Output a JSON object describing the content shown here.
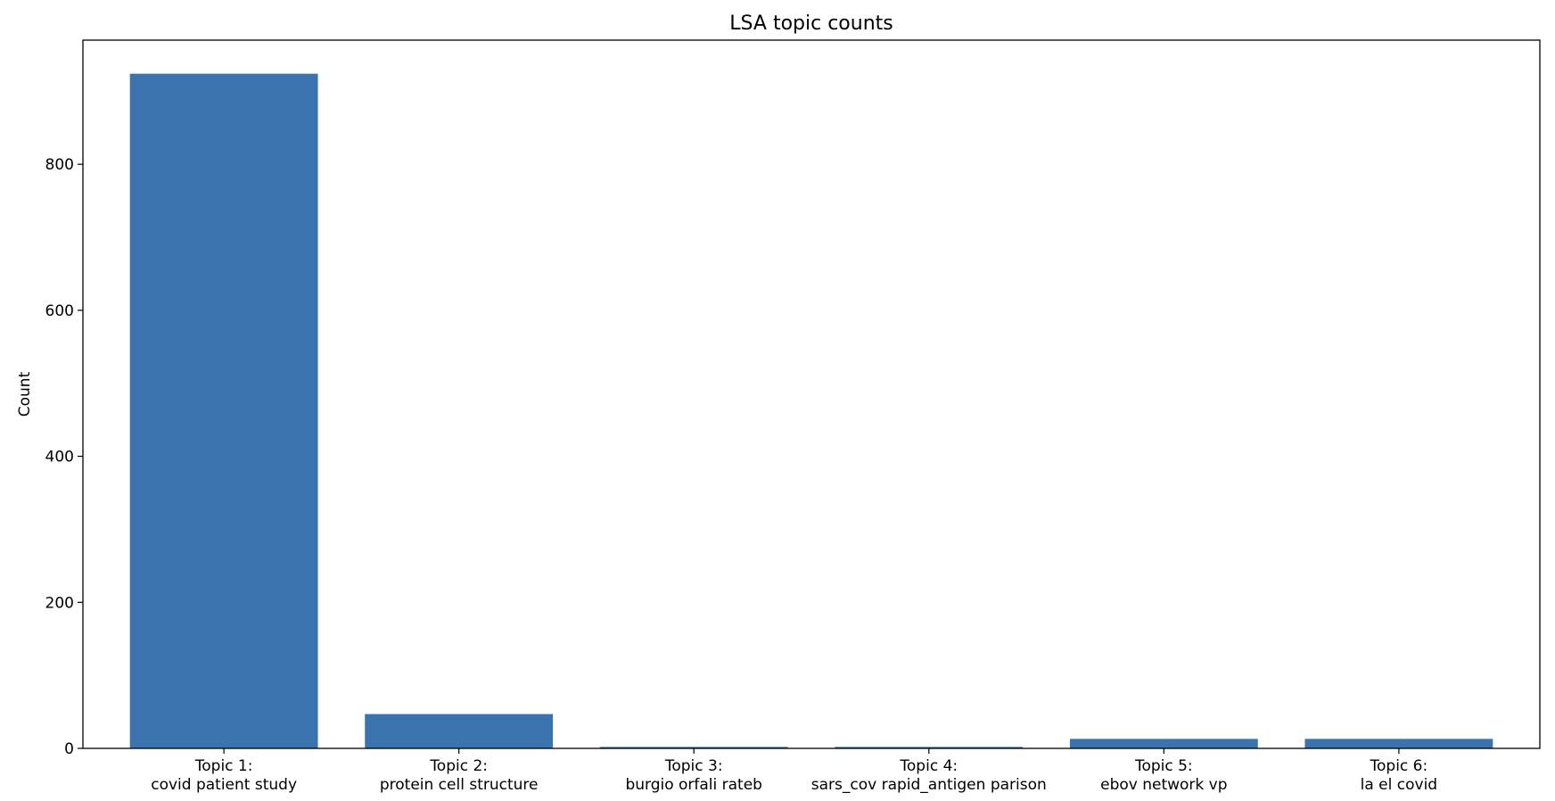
{
  "chart_data": {
    "type": "bar",
    "title": "LSA topic counts",
    "xlabel": "",
    "ylabel": "Count",
    "ylim": [
      0,
      970
    ],
    "yticks": [
      0,
      200,
      400,
      600,
      800
    ],
    "grid": false,
    "categories": [
      [
        "Topic 1:",
        "covid patient study"
      ],
      [
        "Topic 2:",
        "protein cell structure"
      ],
      [
        "Topic 3:",
        "burgio orfali rateb"
      ],
      [
        "Topic 4:",
        "sars_cov rapid_antigen parison"
      ],
      [
        "Topic 5:",
        "ebov network vp"
      ],
      [
        "Topic 6:",
        "la el covid"
      ]
    ],
    "values": [
      924,
      47,
      2,
      2,
      13,
      13
    ],
    "bar_color": "#3a73ae"
  }
}
